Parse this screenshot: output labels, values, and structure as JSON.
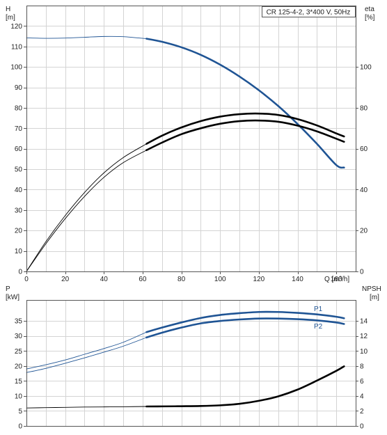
{
  "chart_data": [
    {
      "type": "line",
      "title": "CR 125-4-2, 3*400 V, 50Hz",
      "xlabel": "Q [m³/h]",
      "ylabel_left": [
        "H",
        "[m]"
      ],
      "ylabel_right": [
        "eta",
        "[%]"
      ],
      "xlim": [
        0,
        170
      ],
      "ylim_left": [
        0,
        130
      ],
      "ylim_right": [
        0,
        130
      ],
      "x_ticks": [
        "0",
        "20",
        "40",
        "60",
        "80",
        "100",
        "120",
        "140",
        "160"
      ],
      "y_ticks_left": [
        "0",
        "10",
        "20",
        "30",
        "40",
        "50",
        "60",
        "70",
        "80",
        "90",
        "100",
        "110",
        "120"
      ],
      "y_ticks_right": [
        "0",
        "20",
        "40",
        "60",
        "80",
        "100"
      ],
      "grid": true,
      "series": [
        {
          "key": "h",
          "axis": "left",
          "color": "#1f5494",
          "points": [
            [
              0,
              114.2
            ],
            [
              10,
              114.0
            ],
            [
              20,
              114.1
            ],
            [
              30,
              114.5
            ],
            [
              40,
              114.9
            ],
            [
              50,
              114.8
            ],
            [
              62,
              113.8
            ],
            [
              70,
              112.3
            ],
            [
              80,
              109.6
            ],
            [
              90,
              105.9
            ],
            [
              100,
              101.1
            ],
            [
              110,
              95.3
            ],
            [
              120,
              88.6
            ],
            [
              130,
              80.9
            ],
            [
              140,
              72.1
            ],
            [
              150,
              62.4
            ],
            [
              160,
              52.0
            ],
            [
              164,
              50.8
            ]
          ],
          "bold_from": 62
        },
        {
          "key": "eta_upper",
          "axis": "right",
          "color": "#000000",
          "points": [
            [
              0,
              0
            ],
            [
              10,
              14.5
            ],
            [
              20,
              27.3
            ],
            [
              30,
              38.6
            ],
            [
              40,
              48.2
            ],
            [
              50,
              55.7
            ],
            [
              62,
              62.4
            ],
            [
              70,
              66.4
            ],
            [
              80,
              70.4
            ],
            [
              90,
              73.5
            ],
            [
              100,
              75.7
            ],
            [
              110,
              76.9
            ],
            [
              120,
              77.2
            ],
            [
              130,
              76.5
            ],
            [
              140,
              74.5
            ],
            [
              150,
              71.4
            ],
            [
              160,
              67.5
            ],
            [
              164,
              66.0
            ]
          ],
          "bold_from": 62
        },
        {
          "key": "eta_lower",
          "axis": "right",
          "color": "#000000",
          "points": [
            [
              0,
              0
            ],
            [
              10,
              13.5
            ],
            [
              20,
              25.8
            ],
            [
              30,
              36.7
            ],
            [
              40,
              46.0
            ],
            [
              50,
              53.2
            ],
            [
              62,
              59.3
            ],
            [
              70,
              63.0
            ],
            [
              80,
              67.1
            ],
            [
              90,
              70.0
            ],
            [
              100,
              72.2
            ],
            [
              110,
              73.5
            ],
            [
              120,
              73.8
            ],
            [
              130,
              73.2
            ],
            [
              140,
              71.3
            ],
            [
              150,
              68.5
            ],
            [
              160,
              64.9
            ],
            [
              164,
              63.4
            ]
          ],
          "bold_from": 62
        }
      ]
    },
    {
      "type": "line",
      "xlabel": "",
      "ylabel_left": [
        "P",
        "[kW]"
      ],
      "ylabel_right": [
        "NPSH",
        "[m]"
      ],
      "xlim": [
        0,
        170
      ],
      "ylim_left": [
        0,
        42
      ],
      "ylim_right": [
        0,
        16.8
      ],
      "y_ticks_left": [
        "0",
        "5",
        "10",
        "15",
        "20",
        "25",
        "30",
        "35"
      ],
      "y_ticks_right": [
        "0",
        "2",
        "4",
        "6",
        "8",
        "10",
        "12",
        "14"
      ],
      "grid": true,
      "series": [
        {
          "key": "p1",
          "name": "P1",
          "axis": "left",
          "color": "#1f5494",
          "points": [
            [
              0,
              19.0
            ],
            [
              10,
              20.4
            ],
            [
              20,
              22.0
            ],
            [
              30,
              23.9
            ],
            [
              40,
              25.8
            ],
            [
              50,
              27.9
            ],
            [
              62,
              31.3
            ],
            [
              70,
              32.8
            ],
            [
              80,
              34.5
            ],
            [
              90,
              36.0
            ],
            [
              100,
              37.0
            ],
            [
              110,
              37.6
            ],
            [
              120,
              38.0
            ],
            [
              130,
              38.0
            ],
            [
              140,
              37.7
            ],
            [
              150,
              37.2
            ],
            [
              160,
              36.4
            ],
            [
              164,
              35.9
            ]
          ],
          "bold_from": 62
        },
        {
          "key": "p2",
          "name": "P2",
          "axis": "left",
          "color": "#1f5494",
          "points": [
            [
              0,
              17.8
            ],
            [
              10,
              19.2
            ],
            [
              20,
              20.9
            ],
            [
              30,
              22.7
            ],
            [
              40,
              24.6
            ],
            [
              50,
              26.6
            ],
            [
              62,
              29.5
            ],
            [
              70,
              31.1
            ],
            [
              80,
              32.8
            ],
            [
              90,
              34.2
            ],
            [
              100,
              35.0
            ],
            [
              110,
              35.5
            ],
            [
              120,
              35.8
            ],
            [
              130,
              35.8
            ],
            [
              140,
              35.6
            ],
            [
              150,
              35.2
            ],
            [
              160,
              34.5
            ],
            [
              164,
              34.0
            ]
          ],
          "bold_from": 62
        },
        {
          "key": "npsh",
          "axis": "right",
          "color": "#000000",
          "points": [
            [
              0,
              2.4
            ],
            [
              10,
              2.44
            ],
            [
              20,
              2.48
            ],
            [
              30,
              2.52
            ],
            [
              40,
              2.54
            ],
            [
              50,
              2.56
            ],
            [
              62,
              2.6
            ],
            [
              70,
              2.61
            ],
            [
              80,
              2.63
            ],
            [
              90,
              2.66
            ],
            [
              100,
              2.75
            ],
            [
              110,
              2.95
            ],
            [
              120,
              3.35
            ],
            [
              130,
              3.95
            ],
            [
              140,
              4.85
            ],
            [
              150,
              6.05
            ],
            [
              160,
              7.35
            ],
            [
              164,
              7.95
            ]
          ],
          "bold_from": 62
        }
      ]
    }
  ]
}
